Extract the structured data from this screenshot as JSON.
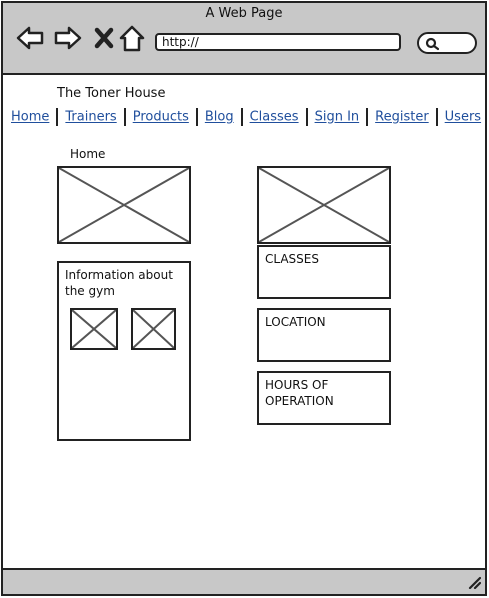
{
  "window": {
    "title": "A Web Page"
  },
  "browser": {
    "address": "http://",
    "icons": [
      "back-arrow-icon",
      "forward-arrow-icon",
      "stop-x-icon",
      "home-icon",
      "search-icon"
    ]
  },
  "site": {
    "title": "The Toner House"
  },
  "nav": {
    "items": [
      "Home",
      "Trainers",
      "Products",
      "Blog",
      "Classes",
      "Sign In",
      "Register",
      "Users"
    ]
  },
  "breadcrumb": "Home",
  "info": {
    "text_line1": "Information about",
    "text_line2": "the gym"
  },
  "panels": {
    "classes": "CLASSES",
    "location": "LOCATION",
    "hours_line1": "HOURS OF",
    "hours_line2": "OPERATION"
  },
  "colors": {
    "chrome": "#c8c8c8",
    "link": "#1f4e9c",
    "stroke": "#222222"
  }
}
